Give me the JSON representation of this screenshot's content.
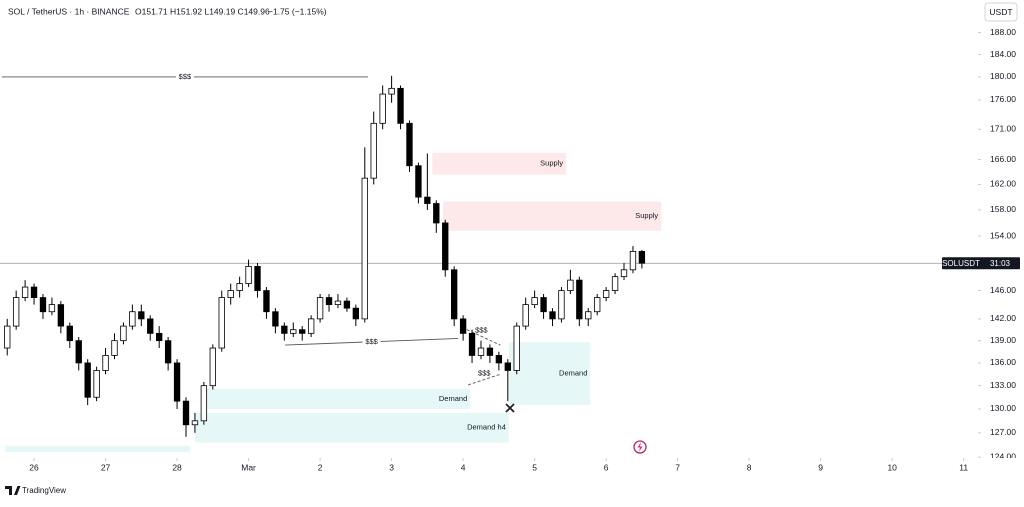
{
  "chart_data": {
    "type": "candlestick",
    "header": {
      "symbol": "SOL / TetherUS · 1h · BINANCE",
      "ohlc": "O151.71 H151.92 L149.19 C149.96",
      "change": "−1.75 (−1.15%)"
    },
    "currency": "USDT",
    "brand": "TradingView",
    "last_price_label": "SOLUSDT",
    "countdown": "31:03",
    "log": true,
    "grid": false,
    "up_color": "#ffffff",
    "down_color": "#000000",
    "xlim": [
      -0.476,
      13.2
    ],
    "ylim": [
      123.9,
      194.1
    ],
    "xticks": [
      {
        "value": 0,
        "label": "26"
      },
      {
        "value": 1,
        "label": "27"
      },
      {
        "value": 2,
        "label": "28"
      },
      {
        "value": 3,
        "label": "Mar"
      },
      {
        "value": 4,
        "label": "2"
      },
      {
        "value": 5,
        "label": "3"
      },
      {
        "value": 6,
        "label": "4"
      },
      {
        "value": 7,
        "label": "5"
      },
      {
        "value": 8,
        "label": "6"
      },
      {
        "value": 9,
        "label": "7"
      },
      {
        "value": 10,
        "label": "8"
      },
      {
        "value": 11,
        "label": "9"
      },
      {
        "value": 12,
        "label": "10"
      },
      {
        "value": 13,
        "label": "11"
      }
    ],
    "yticks": [
      {
        "value": 188,
        "label": "188.00"
      },
      {
        "value": 184,
        "label": "184.00"
      },
      {
        "value": 180,
        "label": "180.00"
      },
      {
        "value": 176,
        "label": "176.00"
      },
      {
        "value": 171,
        "label": "171.00"
      },
      {
        "value": 166,
        "label": "166.00"
      },
      {
        "value": 162,
        "label": "162.00"
      },
      {
        "value": 158,
        "label": "158.00"
      },
      {
        "value": 154,
        "label": "154.00"
      },
      {
        "value": 146,
        "label": "146.00"
      },
      {
        "value": 142,
        "label": "142.00"
      },
      {
        "value": 139,
        "label": "139.00"
      },
      {
        "value": 136,
        "label": "136.00"
      },
      {
        "value": 133,
        "label": "133.00"
      },
      {
        "value": 130,
        "label": "130.00"
      },
      {
        "value": 127,
        "label": "127.00"
      },
      {
        "value": 124,
        "label": "124.00"
      }
    ],
    "x": [
      -0.375,
      -0.25,
      -0.125,
      0,
      0.125,
      0.25,
      0.375,
      0.5,
      0.625,
      0.75,
      0.875,
      1,
      1.125,
      1.25,
      1.375,
      1.5,
      1.625,
      1.75,
      1.875,
      2,
      2.125,
      2.25,
      2.375,
      2.5,
      2.625,
      2.75,
      2.875,
      3,
      3.125,
      3.25,
      3.375,
      3.5,
      3.625,
      3.75,
      3.875,
      4,
      4.125,
      4.25,
      4.375,
      4.5,
      4.625,
      4.75,
      4.875,
      5,
      5.125,
      5.25,
      5.375,
      5.5,
      5.625,
      5.75,
      5.875,
      6,
      6.125,
      6.25,
      6.375,
      6.5,
      6.625,
      6.75,
      6.875,
      7,
      7.125,
      7.25,
      7.375,
      7.5,
      7.625,
      7.75,
      7.875,
      8,
      8.125,
      8.25,
      8.375,
      8.5
    ],
    "open": [
      138,
      141,
      145,
      146.5,
      145,
      143,
      144,
      141,
      139,
      136,
      131.5,
      135,
      137,
      139,
      141,
      143,
      142,
      140,
      139,
      136,
      131,
      128,
      128.5,
      133,
      138,
      145,
      146,
      147,
      149.5,
      146,
      143,
      141,
      140,
      140.5,
      140,
      142,
      145,
      144,
      144.5,
      143.5,
      142,
      163,
      172,
      177,
      178,
      172,
      165,
      160,
      159,
      156,
      149,
      142,
      140,
      137,
      138,
      137,
      136,
      135,
      141,
      144,
      145,
      143,
      142,
      146,
      147.5,
      142,
      143,
      145,
      146,
      148,
      149,
      151.71
    ],
    "high": [
      142,
      146,
      147.5,
      147,
      145.5,
      145,
      144.5,
      141.5,
      139.5,
      136.5,
      135.5,
      138,
      140,
      141.5,
      144,
      144,
      142.5,
      141,
      139.5,
      136.5,
      131.5,
      129.5,
      133.5,
      138.5,
      146,
      147,
      148,
      150.5,
      150,
      146.5,
      143.5,
      141.5,
      141.5,
      141,
      142.5,
      145.5,
      145.5,
      145.5,
      145,
      144,
      168,
      174,
      178.5,
      180.2,
      178.5,
      172.5,
      165.5,
      167,
      159.5,
      156.5,
      149.5,
      142.5,
      140.5,
      139,
      138.5,
      137.5,
      136.5,
      141.5,
      145,
      146,
      145.5,
      143.5,
      146.5,
      149,
      148,
      143.5,
      145.5,
      146.5,
      148.5,
      150,
      152.5,
      151.92
    ],
    "low": [
      137,
      140.5,
      144.5,
      144,
      142,
      142.5,
      140,
      138,
      135,
      130.5,
      131,
      134.5,
      136.5,
      138.5,
      140.5,
      141,
      139,
      138,
      135,
      130,
      126.5,
      127,
      128,
      132.5,
      137.5,
      144,
      145,
      146.5,
      145,
      142,
      140,
      139,
      139.5,
      139,
      139.5,
      141.5,
      143,
      143.5,
      143,
      141,
      141.5,
      162,
      171,
      175.5,
      171,
      164,
      159,
      158,
      154.5,
      148,
      141,
      139,
      136,
      136.5,
      136,
      135,
      131,
      134.5,
      140.5,
      143.5,
      142,
      141,
      141.5,
      145.5,
      141,
      141,
      142.5,
      144.5,
      145.5,
      147.5,
      148.5,
      149.19
    ],
    "close": [
      141,
      145,
      146.5,
      145,
      143,
      144,
      141,
      139,
      136,
      131.5,
      135,
      137,
      139,
      141,
      143,
      142,
      140,
      139,
      136,
      131,
      128,
      128.5,
      133,
      138,
      145,
      146,
      147,
      149.5,
      146,
      143,
      141,
      140,
      140.5,
      140,
      142,
      145,
      144,
      144.5,
      143.5,
      142,
      163,
      172,
      177,
      178,
      172,
      165,
      160,
      159,
      156,
      149,
      142,
      140,
      137,
      138,
      137,
      136,
      135,
      141,
      144,
      145,
      143,
      142,
      146,
      147.5,
      142,
      143,
      145,
      146,
      148,
      149,
      151.71,
      149.96
    ],
    "zones": [
      {
        "label": "Supply",
        "x": [
          5.57,
          7.44
        ],
        "y": [
          163.6,
          167.1
        ],
        "color": "#fde9e9"
      },
      {
        "label": "Supply",
        "x": [
          5.72,
          8.77
        ],
        "y": [
          154.8,
          159.3
        ],
        "color": "#fde9e9"
      },
      {
        "label": "Demand",
        "x": [
          2.42,
          6.1
        ],
        "y": [
          130.0,
          132.6
        ],
        "color": "#e6f7f7"
      },
      {
        "label": "Demand h4",
        "x": [
          2.25,
          6.64
        ],
        "y": [
          125.8,
          129.5
        ],
        "color": "#e6f7f7"
      },
      {
        "label": "Demand",
        "x": [
          6.64,
          7.78
        ],
        "y": [
          130.5,
          138.8
        ],
        "color": "#e6f7f7"
      },
      {
        "x": [
          -0.4,
          2.18
        ],
        "y": [
          124.6,
          125.4
        ],
        "color": "#e6f7f7"
      }
    ],
    "levels": [
      {
        "label": "$$$",
        "x": [
          -0.45,
          4.67
        ],
        "y": [
          180,
          180
        ]
      },
      {
        "label": "$$$",
        "x": [
          3.51,
          5.93
        ],
        "y": [
          138.4,
          139.3
        ]
      },
      {
        "label": "$$$",
        "x": [
          5.99,
          6.52
        ],
        "y": [
          140.8,
          138.4
        ],
        "dashed": true
      },
      {
        "label": "$$$",
        "x": [
          6.07,
          6.52
        ],
        "y": [
          133.1,
          134.5
        ],
        "dashed": true
      }
    ]
  }
}
